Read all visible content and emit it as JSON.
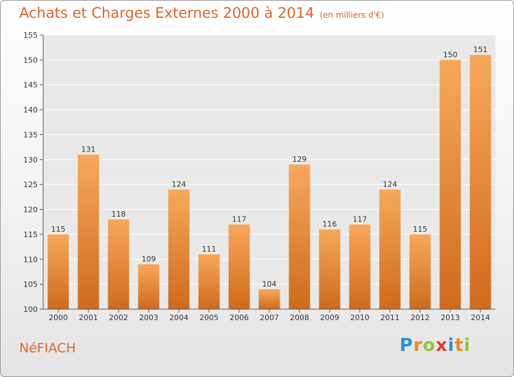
{
  "title": "Achats et Charges Externes 2000 à 2014",
  "subtitle": "(en milliers d'€)",
  "commune": "NéFIACH",
  "logo": {
    "letters": [
      "P",
      "r",
      "o",
      "x",
      "i",
      "t",
      "i"
    ],
    "colors": [
      "#2e8fd3",
      "#f08a1c",
      "#8cc63f",
      "#e33a2c",
      "#2e8fd3",
      "#f08a1c",
      "#8cc63f"
    ]
  },
  "colors": {
    "bar_light": "#f7a85a",
    "bar_dark": "#cf6a1c",
    "accent": "#e0642b"
  },
  "chart_data": {
    "type": "bar",
    "title": "Achats et Charges Externes 2000 à 2014",
    "subtitle": "(en milliers d'€)",
    "categories": [
      "2000",
      "2001",
      "2002",
      "2003",
      "2004",
      "2005",
      "2006",
      "2007",
      "2008",
      "2009",
      "2010",
      "2011",
      "2012",
      "2013",
      "2014"
    ],
    "values": [
      115,
      131,
      118,
      109,
      124,
      111,
      117,
      104,
      129,
      116,
      117,
      124,
      115,
      150,
      151
    ],
    "ylim": [
      100,
      155
    ],
    "yticks": [
      100,
      105,
      110,
      115,
      120,
      125,
      130,
      135,
      140,
      145,
      150,
      155
    ],
    "grid": true,
    "data_labels": true
  }
}
